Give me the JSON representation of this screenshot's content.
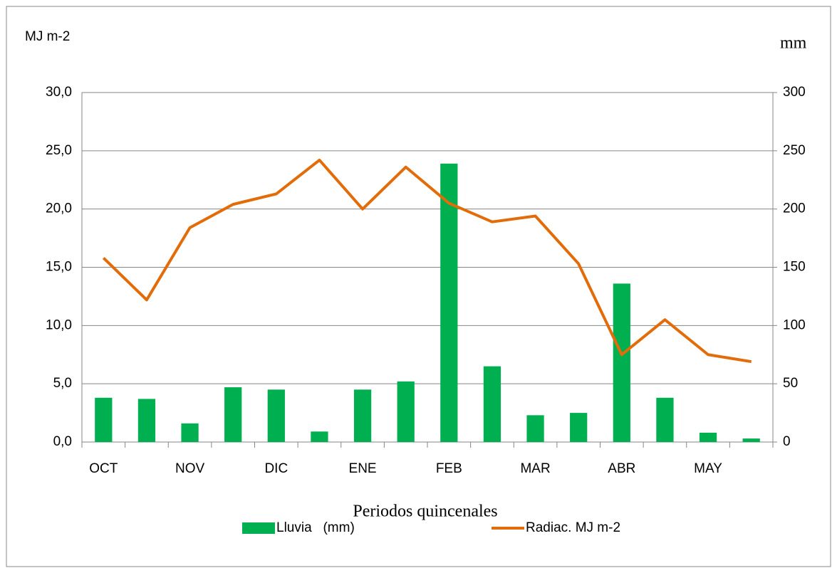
{
  "chart_data": {
    "type": "bar",
    "y_label": "MJ m-2",
    "y2_label": "mm",
    "x_label": "Periodos quincenales",
    "categories": [
      "OCT",
      null,
      "NOV",
      null,
      "DIC",
      null,
      "ENE",
      null,
      "FEB",
      null,
      "MAR",
      null,
      "ABR",
      null,
      "MAY",
      null
    ],
    "series": [
      {
        "name": "Lluvia   (mm)",
        "type": "bar",
        "axis": "y2",
        "color": "#00b050",
        "values": [
          38,
          37,
          16,
          47,
          45,
          9,
          45,
          52,
          239,
          65,
          23,
          25,
          136,
          38,
          8,
          3
        ]
      },
      {
        "name": "Radiac. MJ m-2",
        "type": "line",
        "color": "#e36c0a",
        "values": [
          15.8,
          12.2,
          18.4,
          20.4,
          21.3,
          24.2,
          20.0,
          23.6,
          20.5,
          18.9,
          19.4,
          15.3,
          7.5,
          10.5,
          7.5,
          6.9
        ]
      }
    ],
    "ylim": [
      0,
      30
    ],
    "yticks": [
      {
        "value": 0,
        "label": "0,0"
      },
      {
        "value": 5,
        "label": "5,0"
      },
      {
        "value": 10,
        "label": "10,0"
      },
      {
        "value": 15,
        "label": "15,0"
      },
      {
        "value": 20,
        "label": "20,0"
      },
      {
        "value": 25,
        "label": "25,0"
      },
      {
        "value": 30,
        "label": "30,0"
      }
    ],
    "y2lim": [
      0,
      300
    ],
    "y2ticks": [
      0,
      50,
      100,
      150,
      200,
      250,
      300
    ],
    "grid": true,
    "legend": "bottom"
  }
}
